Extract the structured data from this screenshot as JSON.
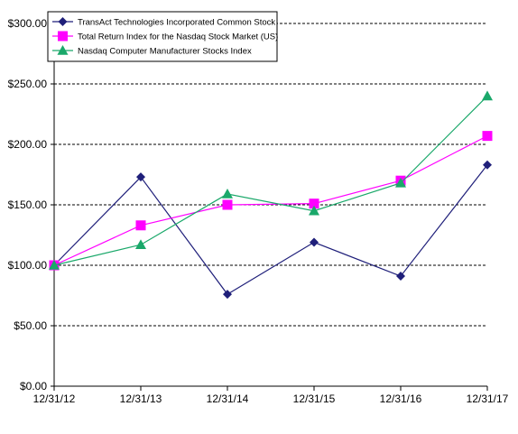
{
  "chart_data": {
    "type": "line",
    "categories": [
      "12/31/12",
      "12/31/13",
      "12/31/14",
      "12/31/15",
      "12/31/16",
      "12/31/17"
    ],
    "ylim": [
      0,
      300
    ],
    "yticks": [
      0,
      50,
      100,
      150,
      200,
      250,
      300
    ],
    "ytick_labels": [
      "$0.00",
      "$50.00",
      "$100.00",
      "$150.00",
      "$200.00",
      "$250.00",
      "$300.00"
    ],
    "grid": "horizontal dashed",
    "legend_placement": "top-left",
    "series": [
      {
        "name": "TransAct Technologies Incorporated Common Stock",
        "values": [
          100,
          173,
          76,
          119,
          91,
          183
        ],
        "color": "#1f1f7a",
        "marker": "diamond"
      },
      {
        "name": "Total Return Index for the Nasdaq Stock Market (US)",
        "values": [
          100,
          133,
          150,
          151,
          170,
          207
        ],
        "color": "#ff00ff",
        "marker": "square"
      },
      {
        "name": "Nasdaq Computer Manufacturer Stocks Index",
        "values": [
          100,
          117,
          159,
          145,
          168,
          240
        ],
        "color": "#1aa86a",
        "marker": "triangle"
      }
    ]
  }
}
